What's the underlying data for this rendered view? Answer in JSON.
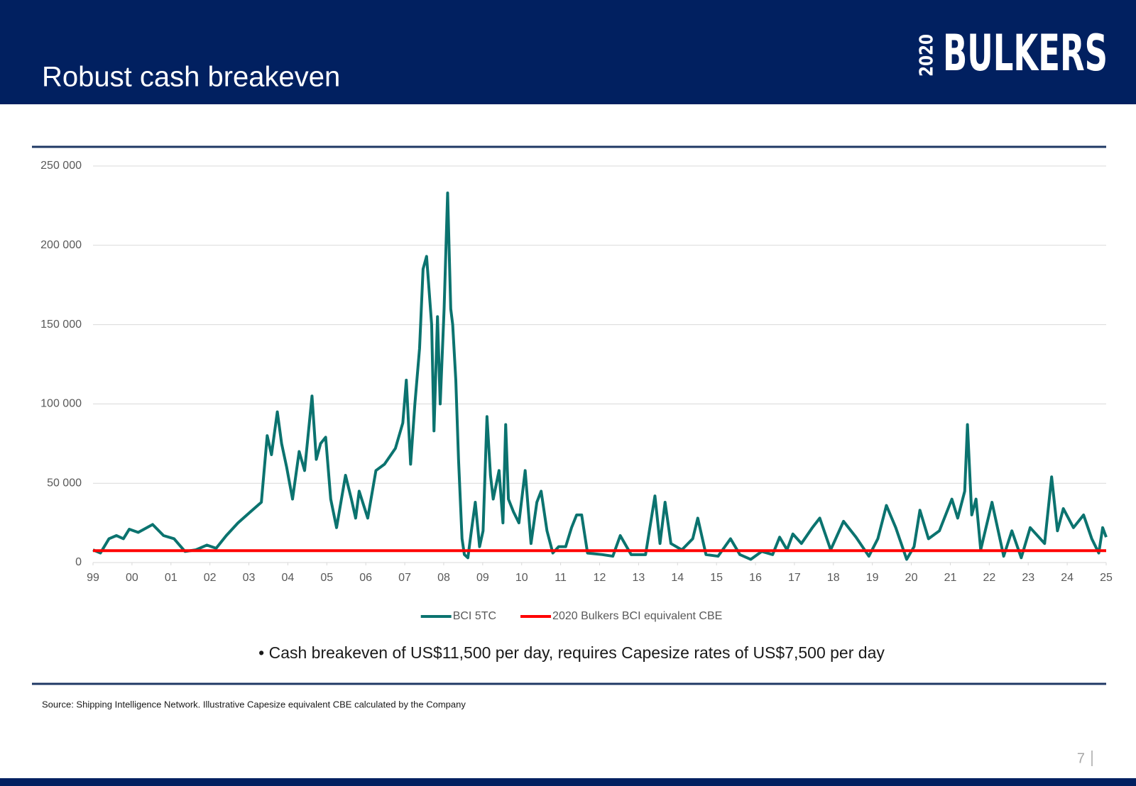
{
  "title": "Robust cash breakeven",
  "logo": {
    "year": "2020",
    "name": "BULKERS"
  },
  "chart_data": {
    "type": "line",
    "xlim": [
      1999,
      2025
    ],
    "xticks": [
      {
        "value": 1999,
        "label": "99"
      },
      {
        "value": 2000,
        "label": "00"
      },
      {
        "value": 2001,
        "label": "01"
      },
      {
        "value": 2002,
        "label": "02"
      },
      {
        "value": 2003,
        "label": "03"
      },
      {
        "value": 2004,
        "label": "04"
      },
      {
        "value": 2005,
        "label": "05"
      },
      {
        "value": 2006,
        "label": "06"
      },
      {
        "value": 2007,
        "label": "07"
      },
      {
        "value": 2008,
        "label": "08"
      },
      {
        "value": 2009,
        "label": "09"
      },
      {
        "value": 2010,
        "label": "10"
      },
      {
        "value": 2011,
        "label": "11"
      },
      {
        "value": 2012,
        "label": "12"
      },
      {
        "value": 2013,
        "label": "13"
      },
      {
        "value": 2014,
        "label": "14"
      },
      {
        "value": 2015,
        "label": "15"
      },
      {
        "value": 2016,
        "label": "16"
      },
      {
        "value": 2017,
        "label": "17"
      },
      {
        "value": 2018,
        "label": "18"
      },
      {
        "value": 2019,
        "label": "19"
      },
      {
        "value": 2020,
        "label": "20"
      },
      {
        "value": 2021,
        "label": "21"
      },
      {
        "value": 2022,
        "label": "22"
      },
      {
        "value": 2023,
        "label": "23"
      },
      {
        "value": 2024,
        "label": "24"
      },
      {
        "value": 2025,
        "label": "25"
      }
    ],
    "ylim": [
      0,
      250000
    ],
    "yticks": [
      0,
      {
        "value": 50000,
        "label": "50 000"
      },
      {
        "value": 100000,
        "label": "100 000"
      },
      {
        "value": 150000,
        "label": "150 000"
      },
      {
        "value": 200000,
        "label": "200 000"
      },
      {
        "value": 250000,
        "label": "250 000"
      }
    ],
    "grid": true,
    "legend": "bottom",
    "series": [
      {
        "name": "BCI 5TC",
        "color": "#0b736f",
        "x": [
          1999.0,
          1999.19,
          1999.41,
          1999.6,
          1999.78,
          1999.93,
          2000.16,
          2000.53,
          2000.81,
          2001.08,
          2001.36,
          2001.64,
          2001.92,
          2002.16,
          2002.42,
          2002.72,
          2003.04,
          2003.32,
          2003.47,
          2003.58,
          2003.73,
          2003.84,
          2003.97,
          2004.12,
          2004.29,
          2004.43,
          2004.62,
          2004.73,
          2004.84,
          2004.97,
          2005.1,
          2005.25,
          2005.48,
          2005.63,
          2005.74,
          2005.83,
          2006.05,
          2006.26,
          2006.48,
          2006.76,
          2006.95,
          2007.04,
          2007.15,
          2007.26,
          2007.38,
          2007.47,
          2007.56,
          2007.69,
          2007.75,
          2007.84,
          2007.91,
          2008.01,
          2008.1,
          2008.18,
          2008.23,
          2008.31,
          2008.38,
          2008.47,
          2008.53,
          2008.62,
          2008.71,
          2008.81,
          2008.92,
          2009.01,
          2009.11,
          2009.2,
          2009.27,
          2009.42,
          2009.52,
          2009.59,
          2009.66,
          2009.79,
          2009.93,
          2010.09,
          2010.24,
          2010.39,
          2010.5,
          2010.65,
          2010.8,
          2010.95,
          2011.13,
          2011.28,
          2011.41,
          2011.54,
          2011.69,
          2012.07,
          2012.34,
          2012.53,
          2012.81,
          2013.18,
          2013.42,
          2013.55,
          2013.68,
          2013.83,
          2014.11,
          2014.39,
          2014.52,
          2014.73,
          2015.04,
          2015.36,
          2015.6,
          2015.88,
          2016.16,
          2016.44,
          2016.62,
          2016.81,
          2016.96,
          2017.18,
          2017.46,
          2017.65,
          2017.93,
          2018.26,
          2018.58,
          2018.91,
          2019.14,
          2019.36,
          2019.6,
          2019.88,
          2020.07,
          2020.22,
          2020.44,
          2020.72,
          2021.04,
          2021.19,
          2021.37,
          2021.44,
          2021.55,
          2021.66,
          2021.78,
          2022.07,
          2022.37,
          2022.58,
          2022.82,
          2023.05,
          2023.42,
          2023.6,
          2023.75,
          2023.9,
          2024.16,
          2024.42,
          2024.63,
          2024.81,
          2024.91,
          2025.0
        ],
        "values": [
          8000,
          6000,
          15000,
          17000,
          15000,
          21000,
          19000,
          24000,
          17000,
          15000,
          7000,
          8000,
          11000,
          9000,
          17000,
          25000,
          32000,
          38000,
          80000,
          68000,
          95000,
          75000,
          60000,
          40000,
          70000,
          58000,
          105000,
          65000,
          75000,
          79000,
          40000,
          22000,
          55000,
          40000,
          28000,
          45000,
          28000,
          58000,
          62000,
          72000,
          88000,
          115000,
          62000,
          100000,
          135000,
          185000,
          193000,
          150000,
          83000,
          155000,
          100000,
          160000,
          233000,
          160000,
          150000,
          115000,
          65000,
          15000,
          5000,
          3000,
          20000,
          38000,
          10000,
          20000,
          92000,
          55000,
          40000,
          58000,
          25000,
          87000,
          40000,
          32000,
          25000,
          58000,
          12000,
          38000,
          45000,
          20000,
          6000,
          10000,
          10000,
          22000,
          30000,
          30000,
          6000,
          5000,
          4000,
          17000,
          5000,
          5000,
          42000,
          12000,
          38000,
          12000,
          8000,
          15000,
          28000,
          5000,
          4000,
          15000,
          5000,
          2000,
          7000,
          5000,
          16000,
          8000,
          18000,
          12000,
          22000,
          28000,
          8000,
          26000,
          16000,
          4000,
          15000,
          36000,
          22000,
          2000,
          10000,
          33000,
          15000,
          20000,
          40000,
          28000,
          45000,
          87000,
          30000,
          40000,
          8000,
          38000,
          4000,
          20000,
          3000,
          22000,
          12000,
          54000,
          20000,
          34000,
          22000,
          30000,
          15000,
          6000,
          22000,
          16000
        ]
      },
      {
        "name": "2020 Bulkers BCI equivalent CBE",
        "color": "#ff0000",
        "x": [
          1999,
          2025
        ],
        "values": [
          7500,
          7500
        ]
      }
    ]
  },
  "note": "• Cash breakeven of US$11,500 per day, requires Capesize rates of US$7,500 per day",
  "source": "Source: Shipping Intelligence Network. Illustrative Capesize equivalent CBE calculated by the Company",
  "page_number": "7"
}
